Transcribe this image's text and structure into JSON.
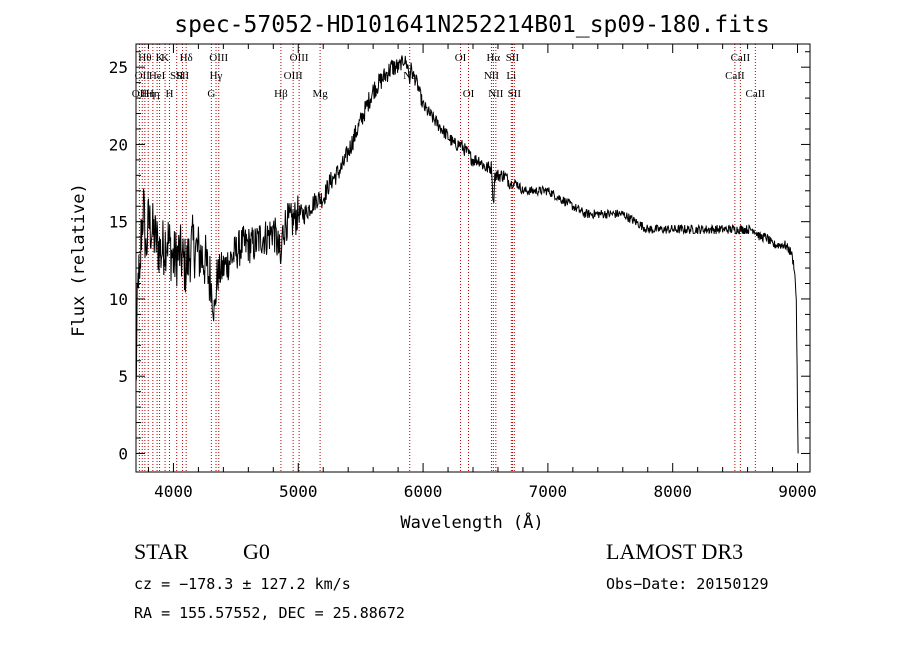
{
  "chart_data": {
    "type": "line",
    "title": "spec-57052-HD101641N252214B01_sp09-180.fits",
    "xlabel": "Wavelength (Å)",
    "ylabel": "Flux (relative)",
    "xlim": [
      3700,
      9100
    ],
    "ylim": [
      -1.2,
      26.5
    ],
    "xticks": [
      4000,
      5000,
      6000,
      7000,
      8000,
      9000
    ],
    "yticks": [
      0,
      5,
      10,
      15,
      20,
      25
    ],
    "grid": false,
    "series": [
      {
        "name": "spectrum",
        "x": [
          3700,
          3710,
          3720,
          3730,
          3740,
          3760,
          3780,
          3800,
          3850,
          3900,
          3950,
          4000,
          4050,
          4100,
          4150,
          4200,
          4250,
          4300,
          4330,
          4350,
          4400,
          4450,
          4500,
          4550,
          4600,
          4650,
          4700,
          4750,
          4800,
          4850,
          4862,
          4870,
          4900,
          4950,
          5000,
          5050,
          5100,
          5150,
          5200,
          5250,
          5300,
          5350,
          5400,
          5450,
          5500,
          5550,
          5600,
          5650,
          5700,
          5750,
          5800,
          5850,
          5880,
          5893,
          5900,
          5920,
          5950,
          6000,
          6050,
          6100,
          6150,
          6200,
          6250,
          6300,
          6350,
          6400,
          6450,
          6500,
          6550,
          6563,
          6575,
          6600,
          6650,
          6700,
          6750,
          6800,
          6850,
          6900,
          6950,
          7000,
          7100,
          7200,
          7300,
          7400,
          7500,
          7600,
          7700,
          7800,
          7900,
          8000,
          8100,
          8200,
          8300,
          8400,
          8500,
          8550,
          8600,
          8650,
          8700,
          8750,
          8800,
          8850,
          8900,
          8950,
          8975,
          8990,
          9000,
          9005
        ],
        "y": [
          4,
          9,
          12,
          10,
          14,
          16,
          13,
          15,
          14,
          13,
          14,
          12.5,
          13,
          12,
          13.5,
          13,
          12.5,
          11,
          9,
          11.5,
          12,
          12.5,
          13,
          13.5,
          13.5,
          13.5,
          14,
          14,
          14.5,
          13,
          12,
          14,
          15,
          15,
          15.5,
          15.5,
          16,
          16.5,
          16.5,
          17.5,
          18,
          18.5,
          19.5,
          20.5,
          21.5,
          22.5,
          23.5,
          24,
          24.5,
          25,
          25,
          25.5,
          25,
          24,
          25,
          24.5,
          24,
          22.5,
          22,
          21.5,
          21,
          20.5,
          20,
          20,
          19.5,
          19,
          19,
          18.5,
          18.5,
          16,
          18,
          18,
          18,
          17.5,
          17.5,
          17,
          17,
          17,
          17,
          17,
          16.5,
          16,
          15.5,
          15.5,
          15.5,
          15.5,
          15,
          14.5,
          14.5,
          14.5,
          14.5,
          14.5,
          14.5,
          14.5,
          14.5,
          14.5,
          14.5,
          14.5,
          14,
          14,
          13.5,
          13.5,
          13.5,
          13,
          12,
          10,
          3,
          0
        ]
      }
    ],
    "lines": [
      {
        "wave": 3727,
        "label": "OII",
        "row": 2
      },
      {
        "wave": 3750,
        "label": "OII",
        "row": 1
      },
      {
        "wave": 3771,
        "label": "Hθ",
        "row": 0
      },
      {
        "wave": 3798,
        "label": "Hη",
        "row": 2
      },
      {
        "wave": 3835,
        "label": "Hη",
        "row": 2
      },
      {
        "wave": 3869,
        "label": "HeI",
        "row": 1
      },
      {
        "wave": 3889,
        "label": "K",
        "row": 0
      },
      {
        "wave": 3933,
        "label": "K",
        "row": 0
      },
      {
        "wave": 3968,
        "label": "H",
        "row": 2
      },
      {
        "wave": 4026,
        "label": "SII",
        "row": 1
      },
      {
        "wave": 4072,
        "label": "SII",
        "row": 1
      },
      {
        "wave": 4102,
        "label": "Hδ",
        "row": 0
      },
      {
        "wave": 4304,
        "label": "G",
        "row": 2
      },
      {
        "wave": 4341,
        "label": "Hγ",
        "row": 1
      },
      {
        "wave": 4363,
        "label": "OIII",
        "row": 0
      },
      {
        "wave": 4861,
        "label": "Hβ",
        "row": 2
      },
      {
        "wave": 4959,
        "label": "OIII",
        "row": 1
      },
      {
        "wave": 5007,
        "label": "OIII",
        "row": 0
      },
      {
        "wave": 5175,
        "label": "Mg",
        "row": 2
      },
      {
        "wave": 5893,
        "label": "Na",
        "row": 1
      },
      {
        "wave": 6300,
        "label": "OI",
        "row": 0
      },
      {
        "wave": 6364,
        "label": "OI",
        "row": 2
      },
      {
        "wave": 6548,
        "label": "NII",
        "row": 1
      },
      {
        "wave": 6563,
        "label": "Hα",
        "row": 0
      },
      {
        "wave": 6583,
        "label": "NII",
        "row": 2
      },
      {
        "wave": 6707,
        "label": "Li",
        "row": 1
      },
      {
        "wave": 6716,
        "label": "SII",
        "row": 0
      },
      {
        "wave": 6731,
        "label": "SII",
        "row": 2
      },
      {
        "wave": 8498,
        "label": "CaII",
        "row": 1
      },
      {
        "wave": 8542,
        "label": "CaII",
        "row": 0
      },
      {
        "wave": 8662,
        "label": "CaII",
        "row": 2
      }
    ]
  },
  "info": {
    "object_class": "STAR",
    "subclass": "G0",
    "survey": "LAMOST DR3",
    "cz": "cz = −178.3 ± 127.2 km/s",
    "obs_date": "Obs−Date: 20150129",
    "coords": "RA = 155.57552, DEC =  25.88672"
  }
}
